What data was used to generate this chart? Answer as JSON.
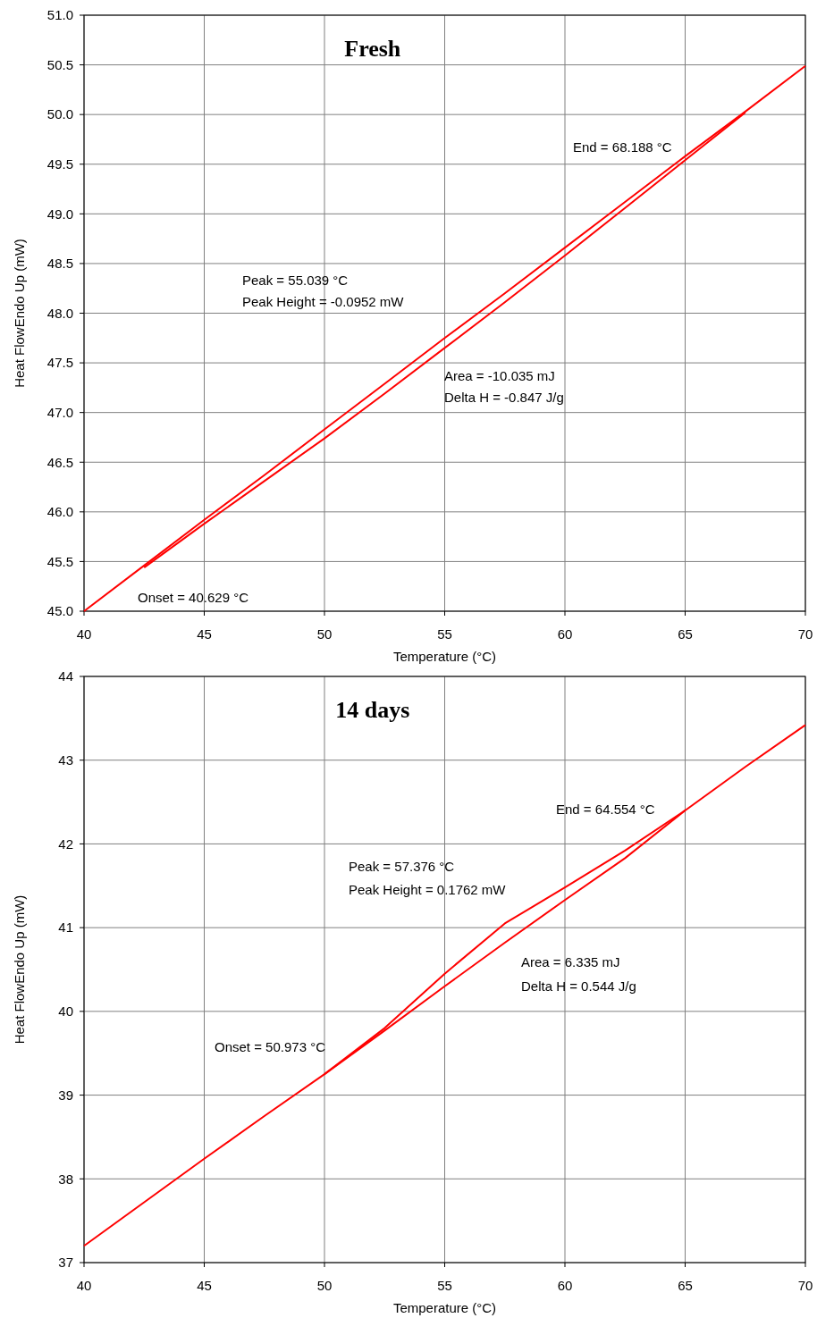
{
  "chart_data": [
    {
      "type": "line",
      "title": "Fresh",
      "xlabel": "Temperature (°C)",
      "ylabel": "Heat FlowEndo Up (mW)",
      "x": [
        40,
        42.5,
        45,
        47.5,
        50,
        52.5,
        55,
        57.5,
        60,
        62.5,
        65,
        67.5,
        70
      ],
      "series": [
        {
          "color": "#ff0000",
          "values": [
            45.0,
            45.46,
            45.92,
            46.37,
            46.83,
            47.29,
            47.75,
            48.2,
            48.66,
            49.12,
            49.58,
            50.03,
            50.49
          ]
        },
        {
          "color": "#ff0000",
          "values": [
            null,
            45.44,
            45.88,
            46.31,
            46.74,
            47.19,
            47.65,
            48.11,
            48.58,
            49.06,
            49.54,
            50.02,
            null
          ]
        }
      ],
      "xlim": [
        40,
        70
      ],
      "xticks": [
        40,
        45,
        50,
        55,
        60,
        65,
        70
      ],
      "ylim": [
        45,
        51
      ],
      "yticks": [
        {
          "value": 45,
          "label": "45.0"
        },
        {
          "value": 45.5,
          "label": "45.5"
        },
        {
          "value": 46,
          "label": "46.0"
        },
        {
          "value": 46.5,
          "label": "46.5"
        },
        {
          "value": 47,
          "label": "47.0"
        },
        {
          "value": 47.5,
          "label": "47.5"
        },
        {
          "value": 48,
          "label": "48.0"
        },
        {
          "value": 48.5,
          "label": "48.5"
        },
        {
          "value": 49,
          "label": "49.0"
        },
        {
          "value": 49.5,
          "label": "49.5"
        },
        {
          "value": 50,
          "label": "50.0"
        },
        {
          "value": 50.5,
          "label": "50.5"
        },
        {
          "value": 51,
          "label": "51.0"
        }
      ],
      "grid": true,
      "marker": "none",
      "line_style": "solid",
      "annotations": [
        "Onset = 40.629 °C",
        "End = 68.188 °C",
        "Peak = 55.039 °C",
        "Peak Height = -0.0952 mW",
        "Area = -10.035 mJ",
        "Delta H = -0.847 J/g"
      ]
    },
    {
      "type": "line",
      "title": "14 days",
      "xlabel": "Temperature (°C)",
      "ylabel": "Heat FlowEndo Up (mW)",
      "x": [
        40,
        42.5,
        45,
        47.5,
        50,
        52.5,
        55,
        57.5,
        60,
        62.5,
        65,
        67.5,
        70
      ],
      "series": [
        {
          "color": "#ff0000",
          "values": [
            37.2,
            37.72,
            38.24,
            38.75,
            39.25,
            39.8,
            40.45,
            41.05,
            41.48,
            41.92,
            42.4,
            42.92,
            43.42
          ]
        },
        {
          "color": "#ff0000",
          "values": [
            null,
            null,
            null,
            null,
            39.25,
            39.77,
            40.3,
            40.82,
            41.33,
            41.83,
            42.4,
            null,
            null
          ]
        }
      ],
      "xlim": [
        40,
        70
      ],
      "xticks": [
        40,
        45,
        50,
        55,
        60,
        65,
        70
      ],
      "ylim": [
        37,
        44
      ],
      "yticks": [
        37,
        38,
        39,
        40,
        41,
        42,
        43,
        44
      ],
      "grid": true,
      "marker": "none",
      "line_style": "solid",
      "annotations": [
        "Onset = 50.973 °C",
        "End = 64.554 °C",
        "Peak = 57.376 °C",
        "Peak Height = 0.1762 mW",
        "Area = 6.335 mJ",
        "Delta H = 0.544 J/g"
      ]
    }
  ]
}
